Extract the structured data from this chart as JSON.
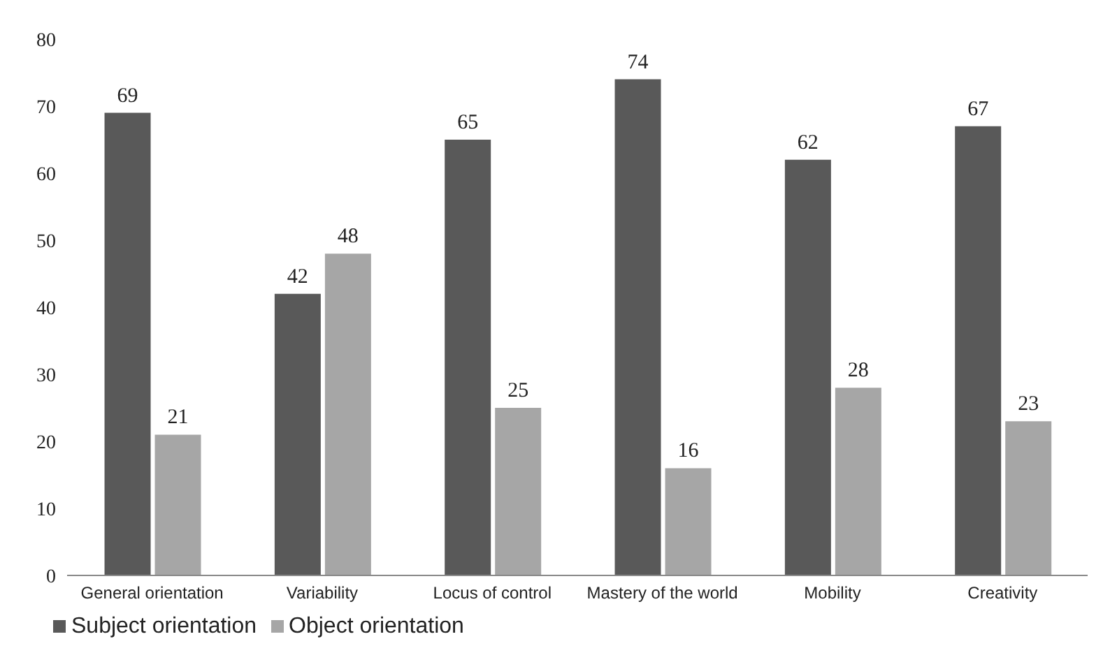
{
  "chart_data": {
    "type": "bar",
    "categories": [
      "General orientation",
      "Variability",
      "Locus of control",
      "Mastery of the world",
      "Mobility",
      "Creativity"
    ],
    "series": [
      {
        "name": "Subject orientation",
        "color": "#595959",
        "values": [
          69,
          42,
          65,
          74,
          62,
          67
        ]
      },
      {
        "name": "Object orientation",
        "color": "#a6a6a6",
        "values": [
          21,
          48,
          25,
          16,
          28,
          23
        ]
      }
    ],
    "ylim": [
      0,
      80
    ],
    "yticks": [
      0,
      10,
      20,
      30,
      40,
      50,
      60,
      70,
      80
    ],
    "grid": false,
    "legend": "bottom left",
    "data_labels": true
  }
}
